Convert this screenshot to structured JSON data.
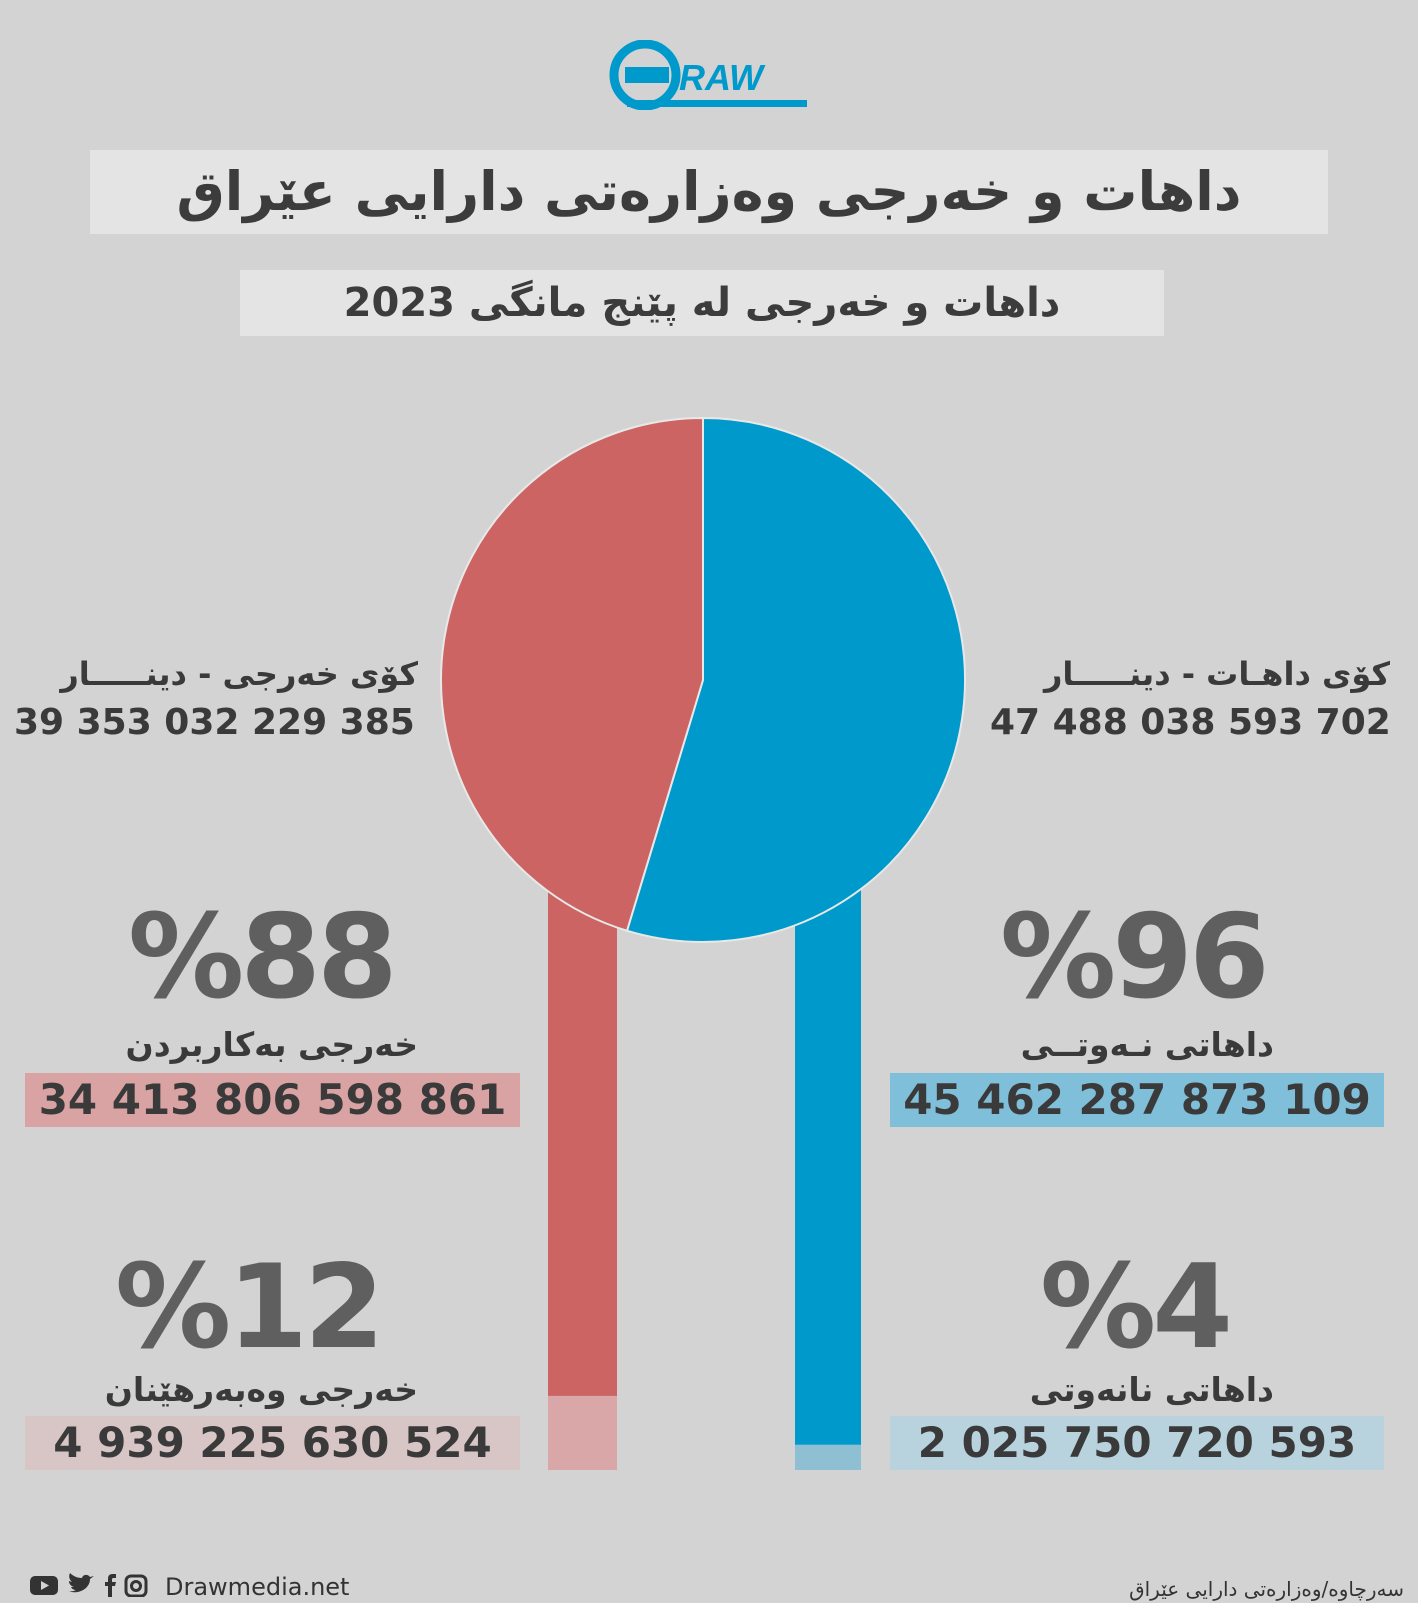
{
  "brand": {
    "logo_text": "RAW",
    "website": "Drawmedia.net"
  },
  "title": "داهات و خەرجی وەزارەتی دارایی عێراق",
  "subtitle": "داهات و خەرجی لە پێنج مانگی 2023",
  "colors": {
    "revenue": "#0099cc",
    "revenue_light": "#8fbfd2",
    "revenue_box": "#7fbfd9",
    "expense": "#cd6464",
    "expense_light": "#d9a7a7",
    "expense_box": "#d9a3a3",
    "expense_box_light": "#d8c5c5",
    "revenue_box_light": "#b8d3de",
    "background": "#d3d3d3"
  },
  "left": {
    "total_label": "کۆی خەرجی - دینـــــار",
    "total_value": "39 353 032 229 385",
    "item1": {
      "pct": "%88",
      "label": "خەرجی بەکاربردن",
      "value": "34 413 806 598 861"
    },
    "item2": {
      "pct": "%12",
      "label": "خەرجی وەبەرهێنان",
      "value": "4 939 225 630 524"
    }
  },
  "right": {
    "total_label": "کۆی داهـات - دینـــــار",
    "total_value": "47 488 038 593 702",
    "item1": {
      "pct": "%96",
      "label": "داهاتی نـەوتــی",
      "value": "45 462 287 873 109"
    },
    "item2": {
      "pct": "%4",
      "label": "داهاتی نانەوتی",
      "value": "2 025 750 720 593"
    }
  },
  "footer": {
    "source": "سەرچاوە/وەزارەتی دارایی عێراق"
  },
  "chart_data": {
    "type": "pie",
    "slices": [
      {
        "label": "کۆی داهـات - دینـــــار",
        "value": 47488038593702,
        "color": "#0099cc"
      },
      {
        "label": "کۆی خەرجی - دینـــــار",
        "value": 39353032229385,
        "color": "#cd6464"
      }
    ],
    "breakdown": [
      {
        "parent": "کۆی داهـات - دینـــــار",
        "items": [
          {
            "label": "داهاتی نـەوتــی",
            "percent": 96,
            "value": 45462287873109
          },
          {
            "label": "داهاتی نانەوتی",
            "percent": 4,
            "value": 2025750720593
          }
        ]
      },
      {
        "parent": "کۆی خەرجی - دینـــــار",
        "items": [
          {
            "label": "خەرجی بەکاربردن",
            "percent": 88,
            "value": 34413806598861
          },
          {
            "label": "خەرجی وەبەرهێنان",
            "percent": 12,
            "value": 4939225630524
          }
        ]
      }
    ]
  }
}
